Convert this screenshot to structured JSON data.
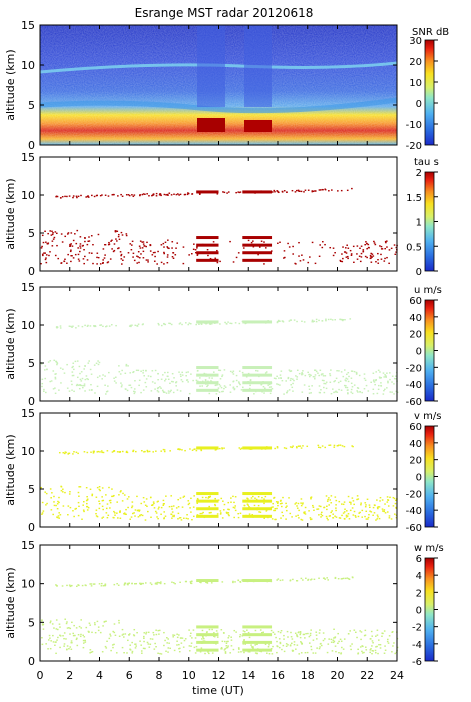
{
  "title": "Esrange MST radar 20120618",
  "xlabel": "time (UT)",
  "xticks": [
    "0",
    "2",
    "4",
    "6",
    "8",
    "10",
    "12",
    "14",
    "16",
    "18",
    "20",
    "22",
    "24"
  ],
  "chart_data": [
    {
      "type": "heatmap",
      "ylabel": "altitude (km)",
      "xlim": [
        0,
        24
      ],
      "ylim": [
        0,
        15
      ],
      "yticks": [
        "0",
        "5",
        "10",
        "15"
      ],
      "colorbar_label": "SNR dB",
      "colorbar_ticks": [
        "30",
        "20",
        "10",
        "0",
        "-10",
        "-20"
      ],
      "colorbar_range": [
        -20,
        30
      ],
      "colors": [
        "#1a2ac8",
        "#2b6fe0",
        "#4fb0f0",
        "#8fe6c8",
        "#d8f06a",
        "#f8e020",
        "#f89020",
        "#e82010",
        "#a80000"
      ],
      "features": [
        {
          "name": "background",
          "value_db": -15
        },
        {
          "name": "layer 10-11 km",
          "alt_km": 10.5,
          "value_db": -8
        },
        {
          "name": "layer 5-6 km",
          "alt_km": 5.5,
          "value_db": 0
        },
        {
          "name": "low altitude 0.5-3 km",
          "alt_km": 1.5,
          "value_db": 20
        }
      ]
    },
    {
      "type": "scatter",
      "ylabel": "altitude (km)",
      "ylim": [
        0,
        15
      ],
      "yticks": [
        "0",
        "5",
        "10",
        "15"
      ],
      "colorbar_label": "tau s",
      "colorbar_ticks": [
        "2",
        "1.5",
        "1",
        "0.5",
        "0"
      ],
      "colorbar_range": [
        0,
        2
      ],
      "dominant_value": 2,
      "dominant_color": "#a80000"
    },
    {
      "type": "scatter",
      "ylabel": "altitude (km)",
      "ylim": [
        0,
        15
      ],
      "yticks": [
        "0",
        "5",
        "10",
        "15"
      ],
      "colorbar_label": "u m/s",
      "colorbar_ticks": [
        "60",
        "40",
        "20",
        "0",
        "-20",
        "-40",
        "-60"
      ],
      "colorbar_range": [
        -60,
        60
      ],
      "dominant_value": 5,
      "dominant_color": "#c8f0b8"
    },
    {
      "type": "scatter",
      "ylabel": "altitude (km)",
      "ylim": [
        0,
        15
      ],
      "yticks": [
        "0",
        "5",
        "10",
        "15"
      ],
      "colorbar_label": "v m/s",
      "colorbar_ticks": [
        "60",
        "40",
        "20",
        "0",
        "-20",
        "-40",
        "-60"
      ],
      "colorbar_range": [
        -60,
        60
      ],
      "dominant_value": 12,
      "dominant_color": "#e8f020"
    },
    {
      "type": "scatter",
      "ylabel": "altitude (km)",
      "ylim": [
        0,
        15
      ],
      "yticks": [
        "0",
        "5",
        "10",
        "15"
      ],
      "colorbar_label": "w m/s",
      "colorbar_ticks": [
        "6",
        "4",
        "2",
        "0",
        "-2",
        "-4",
        "-6"
      ],
      "colorbar_range": [
        -6,
        6
      ],
      "dominant_value": 0.5,
      "dominant_color": "#c8f080"
    }
  ]
}
